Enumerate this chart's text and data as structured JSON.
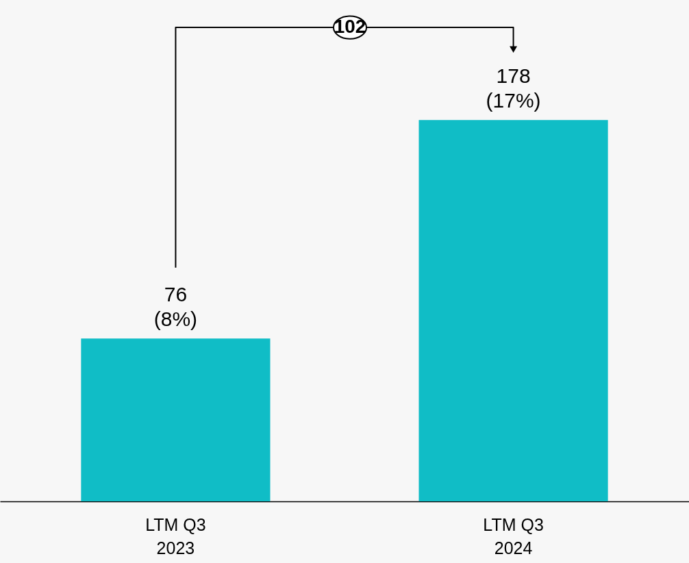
{
  "chart_data": {
    "type": "bar",
    "categories": [
      "LTM Q3\n2023",
      "LTM Q3\n2024"
    ],
    "values": [
      76,
      178
    ],
    "color": "#10bdc6",
    "value_labels": [
      "76\n(8%)",
      "178\n(17%)"
    ],
    "annotations": [
      "102"
    ]
  }
}
